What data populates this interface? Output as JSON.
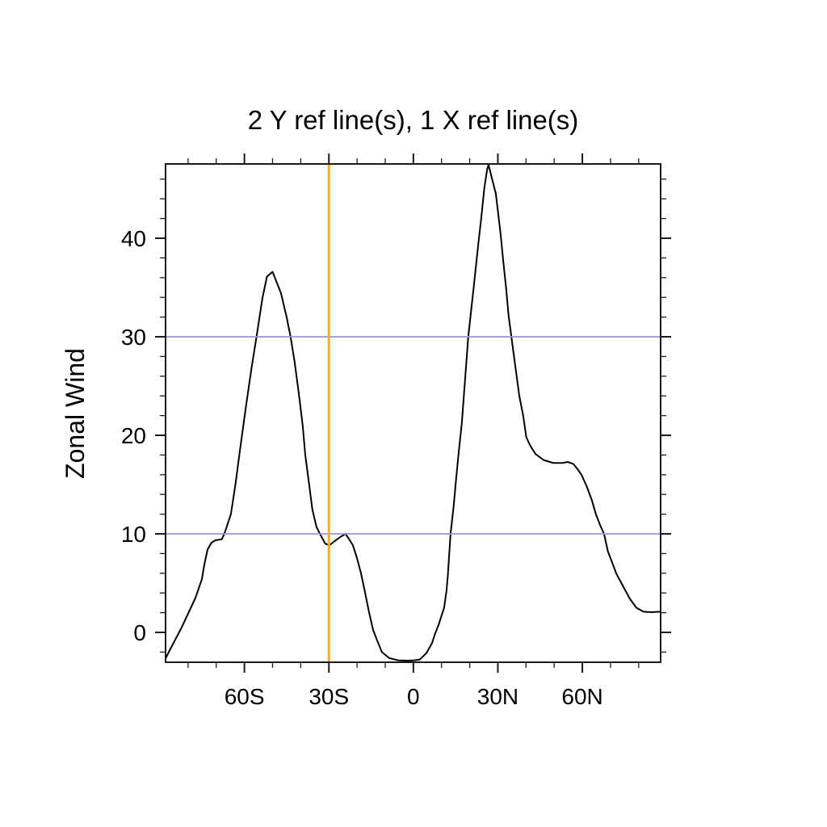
{
  "figure": {
    "background": "#FFFFFF",
    "frame_color": "#1A1A1A"
  },
  "chart_data": {
    "type": "line",
    "title": "2 Y ref line(s), 1 X ref line(s)",
    "xlabel": "",
    "ylabel": "Zonal Wind",
    "xlim": [
      -88.0,
      87.8
    ],
    "ylim": [
      -3.03,
      47.54
    ],
    "grid": false,
    "legend": "none",
    "axis_style": {
      "ticks_outward": true,
      "mirror_ticks_top_right": true,
      "major_tick_len": 13,
      "minor_tick_len": 7
    },
    "x_ticks": {
      "major": [
        {
          "value": -60,
          "label": "60S"
        },
        {
          "value": -30,
          "label": "30S"
        },
        {
          "value": 0,
          "label": "0"
        },
        {
          "value": 30,
          "label": "30N"
        },
        {
          "value": 60,
          "label": "60N"
        }
      ],
      "minor_values": [
        -80,
        -70,
        -50,
        -40,
        -20,
        -10,
        10,
        20,
        40,
        50,
        70,
        80
      ]
    },
    "y_ticks": {
      "major": [
        {
          "value": 0,
          "label": "0"
        },
        {
          "value": 10,
          "label": "10"
        },
        {
          "value": 20,
          "label": "20"
        },
        {
          "value": 30,
          "label": "30"
        },
        {
          "value": 40,
          "label": "40"
        }
      ],
      "minor_values": [
        -2,
        2,
        4,
        6,
        8,
        12,
        14,
        16,
        18,
        22,
        24,
        26,
        28,
        32,
        34,
        36,
        38,
        42,
        44,
        46
      ]
    },
    "ref_lines": {
      "y": [
        {
          "value": 30,
          "color": "#A78BE6",
          "width": 1.8
        },
        {
          "value": 10,
          "color": "#A78BE6",
          "width": 1.8
        }
      ],
      "x": [
        {
          "value": -30,
          "color": "#FBAE17",
          "width": 3
        }
      ]
    },
    "series": [
      {
        "name": "zonal_wind",
        "color": "#000000",
        "width": 2,
        "points": [
          [
            -88.0,
            -2.65
          ],
          [
            -86.5,
            -1.8
          ],
          [
            -84.3,
            -0.6
          ],
          [
            -82.3,
            0.5
          ],
          [
            -80.0,
            1.9
          ],
          [
            -77.4,
            3.5
          ],
          [
            -75.1,
            5.4
          ],
          [
            -74.3,
            6.8
          ],
          [
            -73.1,
            8.4
          ],
          [
            -71.7,
            9.1
          ],
          [
            -70.3,
            9.35
          ],
          [
            -68.0,
            9.45
          ],
          [
            -67.0,
            10.1
          ],
          [
            -64.8,
            12.0
          ],
          [
            -63.2,
            15.0
          ],
          [
            -61.4,
            18.9
          ],
          [
            -59.4,
            23.0
          ],
          [
            -57.5,
            26.8
          ],
          [
            -55.6,
            30.2
          ],
          [
            -53.6,
            33.9
          ],
          [
            -52.0,
            36.1
          ],
          [
            -50.0,
            36.6
          ],
          [
            -48.5,
            35.5
          ],
          [
            -47.0,
            34.4
          ],
          [
            -45.0,
            32.0
          ],
          [
            -43.6,
            30.0
          ],
          [
            -42.2,
            27.5
          ],
          [
            -40.7,
            24.3
          ],
          [
            -39.3,
            21.0
          ],
          [
            -38.4,
            18.0
          ],
          [
            -37.0,
            15.0
          ],
          [
            -35.9,
            12.5
          ],
          [
            -34.4,
            10.7
          ],
          [
            -33.0,
            9.9
          ],
          [
            -31.3,
            9.0
          ],
          [
            -29.8,
            8.85
          ],
          [
            -27.8,
            9.3
          ],
          [
            -26.1,
            9.65
          ],
          [
            -24.1,
            10.0
          ],
          [
            -22.7,
            9.4
          ],
          [
            -21.5,
            8.85
          ],
          [
            -20.1,
            7.6
          ],
          [
            -18.6,
            6.0
          ],
          [
            -17.2,
            4.1
          ],
          [
            -15.8,
            2.1
          ],
          [
            -14.3,
            0.25
          ],
          [
            -12.9,
            -0.8
          ],
          [
            -11.2,
            -2.0
          ],
          [
            -8.6,
            -2.6
          ],
          [
            -5.4,
            -2.83
          ],
          [
            -2.0,
            -2.87
          ],
          [
            0.3,
            -2.83
          ],
          [
            2.3,
            -2.75
          ],
          [
            4.6,
            -2.1
          ],
          [
            6.6,
            -1.1
          ],
          [
            7.5,
            -0.3
          ],
          [
            9.0,
            0.8
          ],
          [
            10.9,
            2.5
          ],
          [
            11.8,
            4.3
          ],
          [
            12.3,
            6.0
          ],
          [
            13.2,
            10.0
          ],
          [
            14.3,
            12.8
          ],
          [
            15.2,
            15.6
          ],
          [
            16.1,
            18.3
          ],
          [
            17.2,
            21.2
          ],
          [
            19.5,
            30.0
          ],
          [
            21.4,
            35.0
          ],
          [
            22.9,
            39.0
          ],
          [
            24.3,
            42.6
          ],
          [
            25.2,
            45.1
          ],
          [
            26.2,
            47.0
          ],
          [
            26.7,
            47.45
          ],
          [
            29.3,
            44.5
          ],
          [
            31.0,
            40.4
          ],
          [
            31.9,
            37.7
          ],
          [
            32.9,
            35.0
          ],
          [
            33.8,
            32.2
          ],
          [
            34.8,
            30.0
          ],
          [
            36.2,
            27.0
          ],
          [
            37.6,
            24.0
          ],
          [
            39.0,
            22.0
          ],
          [
            40.1,
            19.8
          ],
          [
            41.6,
            18.9
          ],
          [
            43.4,
            18.1
          ],
          [
            46.2,
            17.5
          ],
          [
            49.6,
            17.2
          ],
          [
            53.0,
            17.2
          ],
          [
            54.8,
            17.3
          ],
          [
            56.8,
            17.1
          ],
          [
            58.2,
            16.6
          ],
          [
            59.7,
            16.0
          ],
          [
            61.6,
            14.8
          ],
          [
            63.4,
            13.4
          ],
          [
            64.8,
            12.0
          ],
          [
            66.3,
            10.9
          ],
          [
            67.7,
            10.0
          ],
          [
            69.1,
            8.2
          ],
          [
            71.1,
            6.7
          ],
          [
            72.0,
            6.0
          ],
          [
            74.6,
            4.6
          ],
          [
            76.9,
            3.4
          ],
          [
            79.2,
            2.5
          ],
          [
            81.7,
            2.1
          ],
          [
            84.6,
            2.05
          ],
          [
            87.8,
            2.1
          ]
        ]
      }
    ]
  }
}
